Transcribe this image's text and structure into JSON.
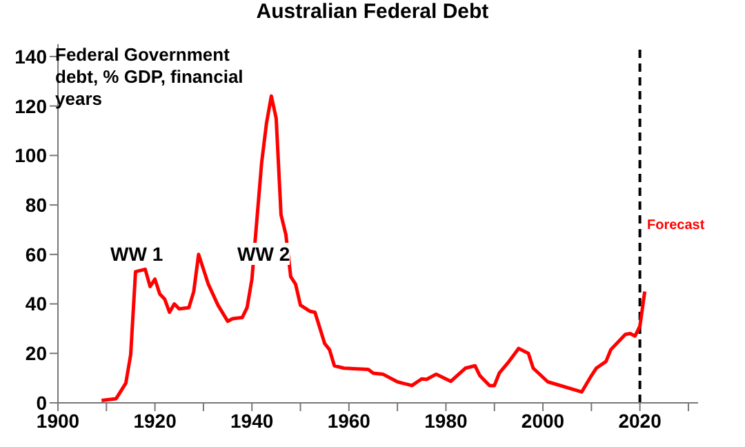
{
  "chart_data": {
    "type": "line",
    "title": "Australian Federal Debt",
    "annotations": [
      "Federal Government debt, % GDP, financial years",
      "WW 1",
      "WW 2",
      "Forecast"
    ],
    "x": [
      1909,
      1912,
      1914,
      1915,
      1916,
      1918,
      1919,
      1920,
      1921,
      1922,
      1923,
      1924,
      1925,
      1927,
      1928,
      1929,
      1930,
      1931,
      1933,
      1935,
      1936,
      1938,
      1939,
      1940,
      1942,
      1943,
      1944,
      1945,
      1946,
      1947,
      1948,
      1949,
      1950,
      1952,
      1953,
      1955,
      1956,
      1957,
      1958,
      1959,
      1964,
      1965,
      1967,
      1970,
      1971,
      1973,
      1975,
      1976,
      1978,
      1981,
      1984,
      1986,
      1987,
      1989,
      1990,
      1991,
      1993,
      1995,
      1997,
      1998,
      2001,
      2008,
      2010,
      2011,
      2013,
      2014,
      2017,
      2018,
      2019,
      2020,
      2021
    ],
    "series": [
      {
        "color": "#ff0000",
        "values": [
          1,
          1.7,
          8,
          19.5,
          53,
          54,
          47,
          50,
          44,
          42,
          36.6,
          40,
          38,
          38.5,
          45,
          60,
          54,
          48,
          39.5,
          33,
          34,
          34.5,
          38.5,
          50,
          97,
          113,
          124,
          115,
          76,
          68,
          51,
          48,
          39.5,
          37,
          36.6,
          24,
          21.5,
          15,
          14.5,
          14,
          13.5,
          12,
          11.6,
          8.5,
          8,
          7,
          9.7,
          9.5,
          11.6,
          8.7,
          14,
          15,
          11,
          7,
          7,
          12,
          16.7,
          22,
          20,
          14,
          8.5,
          4.4,
          11,
          14,
          16.7,
          21.5,
          27.7,
          28,
          27,
          31,
          45
        ]
      }
    ],
    "xlim": [
      1900,
      2032
    ],
    "xticks": [
      1900,
      {
        "value": 1910,
        "label": null
      },
      1920,
      {
        "value": 1930,
        "label": null
      },
      1940,
      {
        "value": 1950,
        "label": null
      },
      1960,
      {
        "value": 1970,
        "label": null
      },
      1980,
      {
        "value": 1990,
        "label": null
      },
      2000,
      {
        "value": 2010,
        "label": null
      },
      2020,
      {
        "value": 2030,
        "label": null
      }
    ],
    "ylim": [
      0,
      145
    ],
    "yticks": [
      0,
      20,
      40,
      60,
      80,
      100,
      120,
      140
    ],
    "ref_lines": [
      {
        "axis": "x",
        "value": 2020,
        "color": "#000000",
        "line_style": "dashed"
      }
    ],
    "marker": "none",
    "line_style": "solid"
  }
}
